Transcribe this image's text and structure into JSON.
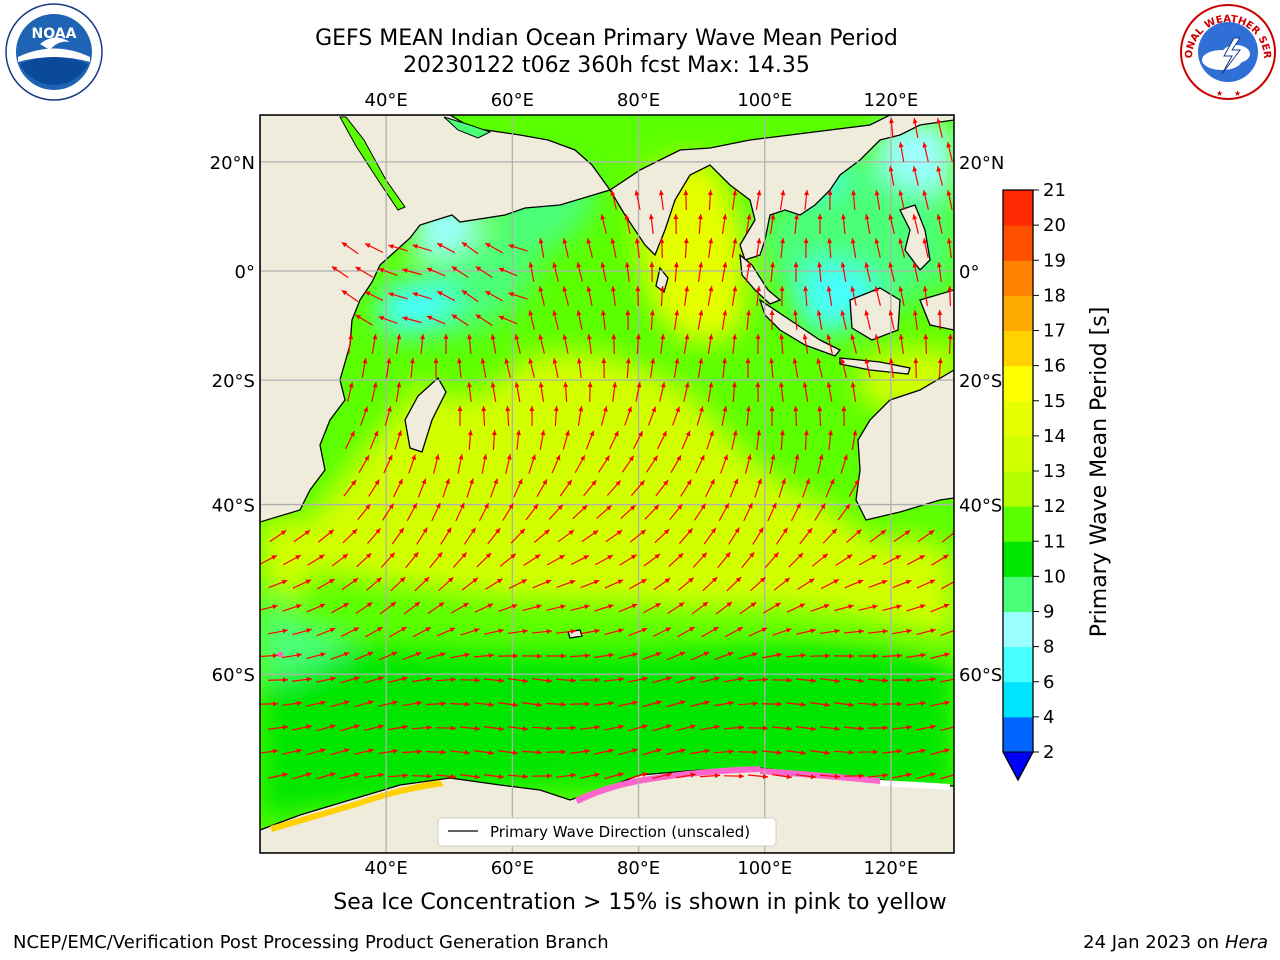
{
  "title": {
    "line1": "GEFS MEAN Indian Ocean Primary Wave Mean Period",
    "line2": "20230122 t06z 360h fcst   Max: 14.35"
  },
  "map": {
    "lon_range": [
      20,
      130
    ],
    "lat_range": [
      -73,
      28
    ],
    "lon_ticks": [
      {
        "value": 40,
        "label": "40°E"
      },
      {
        "value": 60,
        "label": "60°E"
      },
      {
        "value": 80,
        "label": "80°E"
      },
      {
        "value": 100,
        "label": "100°E"
      },
      {
        "value": 120,
        "label": "120°E"
      }
    ],
    "lat_ticks": [
      {
        "value": 20,
        "label": "20°N"
      },
      {
        "value": 0,
        "label": "0°"
      },
      {
        "value": -20,
        "label": "20°S"
      },
      {
        "value": -40,
        "label": "40°S"
      },
      {
        "value": -60,
        "label": "60°S"
      }
    ],
    "gridlines": true,
    "legend_label": "Primary Wave Direction (unscaled)",
    "legend_placement": "bottom-center",
    "land_color": "#efecdc",
    "arrow_color": "#ff0000"
  },
  "colorbar": {
    "label": "Primary Wave Mean Period [s]",
    "ticks": [
      "2",
      "4",
      "6",
      "8",
      "9",
      "10",
      "11",
      "12",
      "13",
      "14",
      "15",
      "16",
      "17",
      "18",
      "19",
      "20",
      "21"
    ],
    "colors": [
      "#0064ff",
      "#00e5ff",
      "#46ffff",
      "#9bffff",
      "#4bff78",
      "#00e600",
      "#5aff00",
      "#b4ff00",
      "#d2ff00",
      "#e6ff00",
      "#ffff00",
      "#ffd200",
      "#ffaa00",
      "#ff8200",
      "#ff5000",
      "#ff2800"
    ],
    "underflow_color": "#0000ff"
  },
  "note": "Sea Ice Concentration > 15% is shown in pink to yellow",
  "footer": {
    "left": "NCEP/EMC/Verification Post Processing Product Generation Branch",
    "date": "24 Jan 2023 on ",
    "machine": "Hera"
  },
  "logos": {
    "noaa": "NOAA",
    "nws_text": "NATIONAL WEATHER SERVICE"
  }
}
